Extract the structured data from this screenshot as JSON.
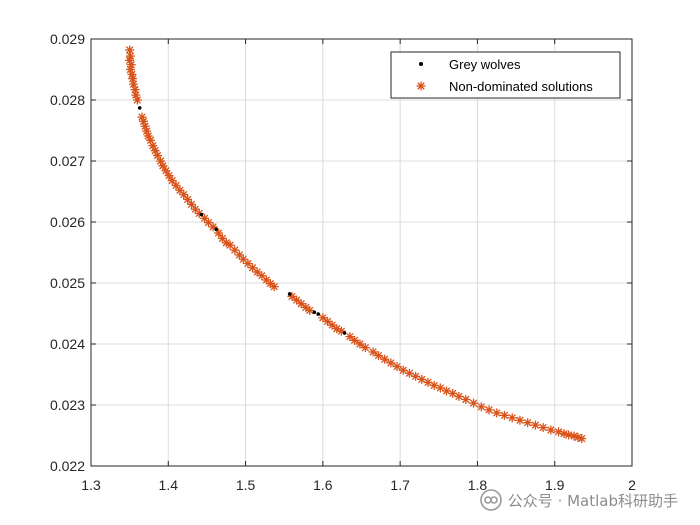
{
  "chart_data": {
    "type": "scatter",
    "title": "",
    "xlabel": "",
    "ylabel": "",
    "xlim": [
      1.3,
      2.0
    ],
    "ylim": [
      0.022,
      0.029
    ],
    "xticks": [
      "1.3",
      "1.4",
      "1.5",
      "1.6",
      "1.7",
      "1.8",
      "1.9",
      "2"
    ],
    "yticks": [
      "0.022",
      "0.023",
      "0.024",
      "0.025",
      "0.026",
      "0.027",
      "0.028",
      "0.029"
    ],
    "grid": true,
    "legend_position": "top-right",
    "series": [
      {
        "name": "Grey wolves",
        "marker": "dot",
        "color": "#000000",
        "points": [
          [
            1.363,
            0.02787
          ],
          [
            1.443,
            0.02612
          ],
          [
            1.462,
            0.02588
          ],
          [
            1.557,
            0.02482
          ],
          [
            1.589,
            0.02452
          ],
          [
            1.594,
            0.02449
          ],
          [
            1.628,
            0.02418
          ]
        ]
      },
      {
        "name": "Non-dominated solutions",
        "marker": "asterisk",
        "color": "#D95319",
        "points": [
          [
            1.35,
            0.02882
          ],
          [
            1.351,
            0.02872
          ],
          [
            1.35,
            0.02865
          ],
          [
            1.352,
            0.02858
          ],
          [
            1.351,
            0.0285
          ],
          [
            1.353,
            0.02842
          ],
          [
            1.354,
            0.02835
          ],
          [
            1.355,
            0.02826
          ],
          [
            1.357,
            0.02817
          ],
          [
            1.358,
            0.02808
          ],
          [
            1.36,
            0.028
          ],
          [
            1.366,
            0.02772
          ],
          [
            1.368,
            0.02765
          ],
          [
            1.37,
            0.02757
          ],
          [
            1.372,
            0.02749
          ],
          [
            1.374,
            0.02741
          ],
          [
            1.377,
            0.02734
          ],
          [
            1.38,
            0.02725
          ],
          [
            1.383,
            0.02717
          ],
          [
            1.386,
            0.02709
          ],
          [
            1.39,
            0.027
          ],
          [
            1.393,
            0.02692
          ],
          [
            1.397,
            0.02684
          ],
          [
            1.401,
            0.02676
          ],
          [
            1.405,
            0.02668
          ],
          [
            1.41,
            0.0266
          ],
          [
            1.415,
            0.02652
          ],
          [
            1.42,
            0.02645
          ],
          [
            1.425,
            0.02637
          ],
          [
            1.43,
            0.02629
          ],
          [
            1.435,
            0.02621
          ],
          [
            1.44,
            0.02614
          ],
          [
            1.447,
            0.02606
          ],
          [
            1.452,
            0.02599
          ],
          [
            1.458,
            0.02592
          ],
          [
            1.465,
            0.02582
          ],
          [
            1.47,
            0.02573
          ],
          [
            1.475,
            0.02566
          ],
          [
            1.48,
            0.02562
          ],
          [
            1.486,
            0.02554
          ],
          [
            1.492,
            0.02546
          ],
          [
            1.497,
            0.02539
          ],
          [
            1.503,
            0.02532
          ],
          [
            1.509,
            0.02525
          ],
          [
            1.515,
            0.02518
          ],
          [
            1.521,
            0.02512
          ],
          [
            1.527,
            0.02505
          ],
          [
            1.532,
            0.02499
          ],
          [
            1.537,
            0.02494
          ],
          [
            1.56,
            0.02478
          ],
          [
            1.566,
            0.02472
          ],
          [
            1.572,
            0.02466
          ],
          [
            1.578,
            0.0246
          ],
          [
            1.583,
            0.02455
          ],
          [
            1.6,
            0.02443
          ],
          [
            1.606,
            0.02437
          ],
          [
            1.612,
            0.02431
          ],
          [
            1.618,
            0.02425
          ],
          [
            1.624,
            0.02421
          ],
          [
            1.635,
            0.02412
          ],
          [
            1.641,
            0.02406
          ],
          [
            1.648,
            0.024
          ],
          [
            1.655,
            0.02394
          ],
          [
            1.665,
            0.02387
          ],
          [
            1.672,
            0.02381
          ],
          [
            1.68,
            0.02375
          ],
          [
            1.688,
            0.02369
          ],
          [
            1.696,
            0.02363
          ],
          [
            1.704,
            0.02357
          ],
          [
            1.712,
            0.02352
          ],
          [
            1.72,
            0.02347
          ],
          [
            1.728,
            0.02342
          ],
          [
            1.736,
            0.02337
          ],
          [
            1.744,
            0.02332
          ],
          [
            1.752,
            0.02328
          ],
          [
            1.76,
            0.02323
          ],
          [
            1.768,
            0.02319
          ],
          [
            1.776,
            0.02314
          ],
          [
            1.785,
            0.02309
          ],
          [
            1.795,
            0.02303
          ],
          [
            1.805,
            0.02297
          ],
          [
            1.815,
            0.02292
          ],
          [
            1.825,
            0.02287
          ],
          [
            1.835,
            0.02283
          ],
          [
            1.845,
            0.02279
          ],
          [
            1.855,
            0.02275
          ],
          [
            1.865,
            0.02271
          ],
          [
            1.875,
            0.02267
          ],
          [
            1.885,
            0.02263
          ],
          [
            1.895,
            0.02259
          ],
          [
            1.905,
            0.02256
          ],
          [
            1.912,
            0.02253
          ],
          [
            1.918,
            0.02251
          ],
          [
            1.925,
            0.02249
          ],
          [
            1.93,
            0.02247
          ],
          [
            1.935,
            0.02245
          ]
        ]
      }
    ]
  },
  "watermark": {
    "text": "公众号 · Matlab科研助手",
    "icon": "wechat-official-account-icon"
  }
}
